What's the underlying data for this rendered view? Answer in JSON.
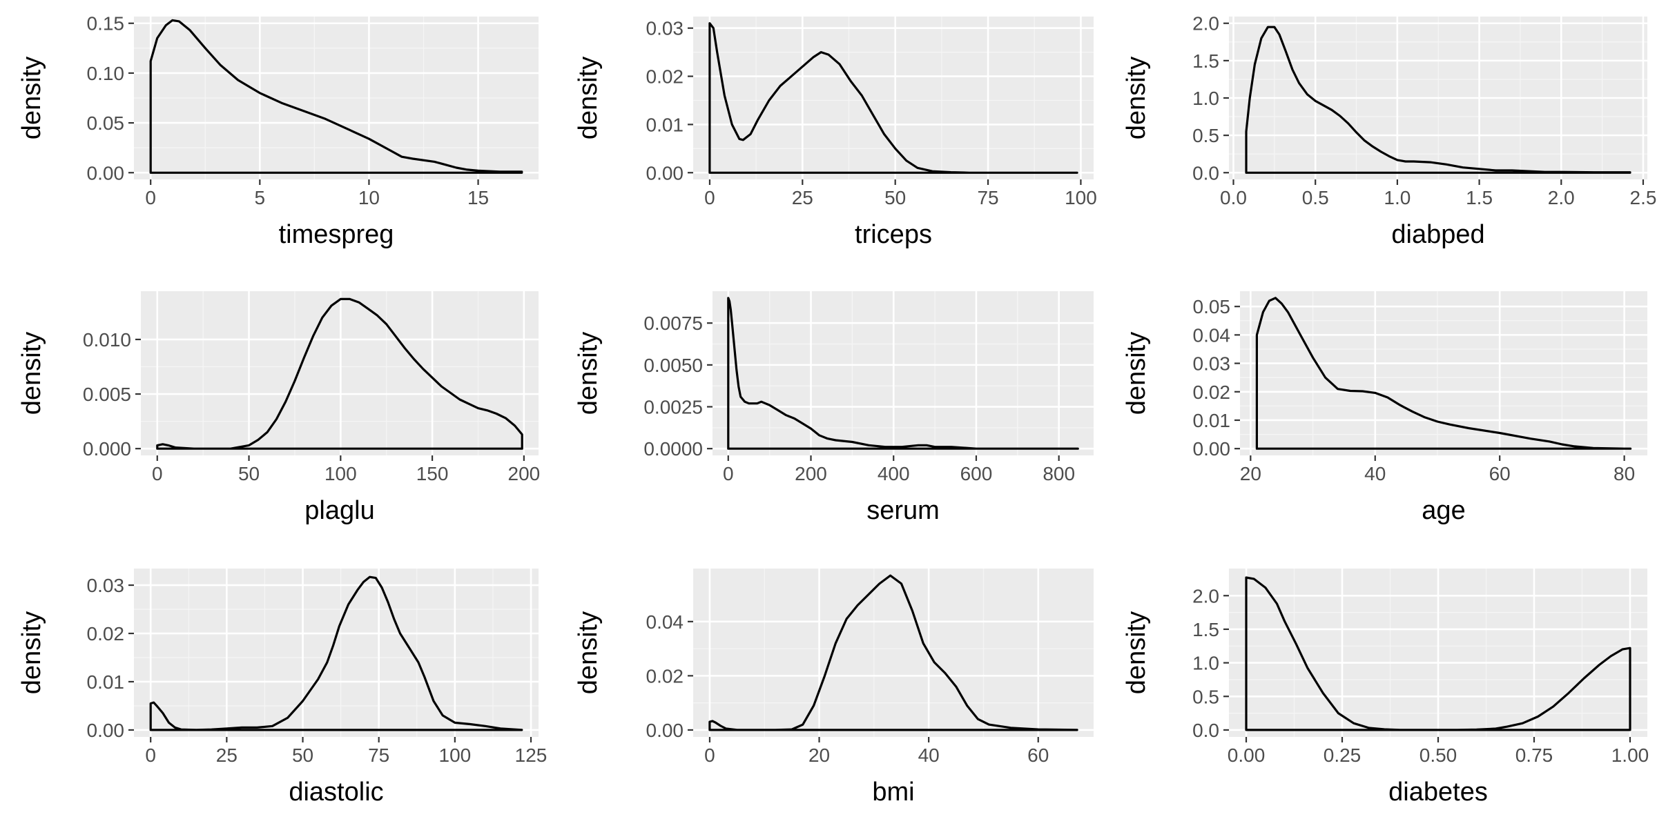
{
  "chart_data": [
    {
      "type": "area",
      "xlabel": "timespreg",
      "ylabel": "density",
      "xlim": [
        0,
        17
      ],
      "ylim": [
        0,
        0.15
      ],
      "xticks": [
        0,
        5,
        10,
        15
      ],
      "xtick_labels": [
        "0",
        "5",
        "10",
        "15"
      ],
      "yticks": [
        0,
        0.05,
        0.1,
        0.15
      ],
      "ytick_labels": [
        "0.00",
        "0.05",
        "0.10",
        "0.15"
      ],
      "x": [
        0,
        0.3,
        0.7,
        1,
        1.3,
        1.8,
        2.5,
        3.2,
        4,
        5,
        6,
        7,
        8,
        9,
        10,
        11,
        11.5,
        12,
        13,
        13.5,
        14,
        14.5,
        15,
        16,
        17
      ],
      "y": [
        0.112,
        0.135,
        0.148,
        0.153,
        0.152,
        0.143,
        0.125,
        0.108,
        0.093,
        0.08,
        0.07,
        0.062,
        0.054,
        0.044,
        0.034,
        0.022,
        0.016,
        0.014,
        0.011,
        0.008,
        0.005,
        0.003,
        0.002,
        0.001,
        0.001
      ],
      "grid": true,
      "legend": "none"
    },
    {
      "type": "area",
      "xlabel": "triceps",
      "ylabel": "density",
      "xlim": [
        0,
        99
      ],
      "ylim": [
        0,
        0.031
      ],
      "xticks": [
        0,
        25,
        50,
        75,
        100
      ],
      "xtick_labels": [
        "0",
        "25",
        "50",
        "75",
        "100"
      ],
      "yticks": [
        0,
        0.01,
        0.02,
        0.03
      ],
      "ytick_labels": [
        "0.00",
        "0.01",
        "0.02",
        "0.03"
      ],
      "x": [
        0,
        1,
        2,
        4,
        6,
        8,
        9,
        11,
        13,
        16,
        19,
        22,
        25,
        28,
        30,
        32,
        35,
        38,
        41,
        44,
        47,
        50,
        53,
        56,
        60,
        65,
        70,
        80,
        99
      ],
      "y": [
        0.031,
        0.03,
        0.025,
        0.016,
        0.01,
        0.007,
        0.0068,
        0.008,
        0.011,
        0.015,
        0.018,
        0.02,
        0.022,
        0.024,
        0.025,
        0.0245,
        0.0225,
        0.019,
        0.016,
        0.012,
        0.008,
        0.005,
        0.0025,
        0.001,
        0.0003,
        0.0001,
        0,
        0,
        0
      ],
      "grid": true,
      "legend": "none"
    },
    {
      "type": "area",
      "xlabel": "diabped",
      "ylabel": "density",
      "xlim": [
        0.078,
        2.42
      ],
      "ylim": [
        0,
        2.0
      ],
      "xticks": [
        0,
        0.5,
        1.0,
        1.5,
        2.0,
        2.5
      ],
      "xtick_labels": [
        "0.0",
        "0.5",
        "1.0",
        "1.5",
        "2.0",
        "2.5"
      ],
      "yticks": [
        0,
        0.5,
        1.0,
        1.5,
        2.0
      ],
      "ytick_labels": [
        "0.0",
        "0.5",
        "1.0",
        "1.5",
        "2.0"
      ],
      "x": [
        0.078,
        0.1,
        0.13,
        0.17,
        0.21,
        0.25,
        0.28,
        0.32,
        0.36,
        0.4,
        0.45,
        0.5,
        0.55,
        0.6,
        0.65,
        0.7,
        0.75,
        0.8,
        0.85,
        0.9,
        0.95,
        1.0,
        1.05,
        1.1,
        1.2,
        1.3,
        1.4,
        1.5,
        1.6,
        1.7,
        1.8,
        1.9,
        2.0,
        2.2,
        2.42
      ],
      "y": [
        0.55,
        1.0,
        1.45,
        1.8,
        1.95,
        1.95,
        1.85,
        1.62,
        1.38,
        1.2,
        1.05,
        0.96,
        0.9,
        0.84,
        0.76,
        0.66,
        0.54,
        0.43,
        0.35,
        0.28,
        0.22,
        0.17,
        0.15,
        0.15,
        0.14,
        0.11,
        0.07,
        0.05,
        0.03,
        0.03,
        0.02,
        0.01,
        0.01,
        0.005,
        0.005
      ],
      "grid": true,
      "legend": "none"
    },
    {
      "type": "area",
      "xlabel": "plaglu",
      "ylabel": "density",
      "xlim": [
        0,
        199
      ],
      "ylim": [
        0,
        0.0138
      ],
      "xticks": [
        0,
        50,
        100,
        150,
        200
      ],
      "xtick_labels": [
        "0",
        "50",
        "100",
        "150",
        "200"
      ],
      "yticks": [
        0,
        0.005,
        0.01
      ],
      "ytick_labels": [
        "0.000",
        "0.005",
        "0.010"
      ],
      "x": [
        0,
        3,
        6,
        10,
        20,
        30,
        40,
        50,
        55,
        60,
        65,
        70,
        75,
        80,
        85,
        90,
        95,
        100,
        105,
        110,
        115,
        120,
        125,
        130,
        135,
        140,
        145,
        150,
        155,
        160,
        165,
        170,
        175,
        180,
        185,
        190,
        195,
        199
      ],
      "y": [
        0.0003,
        0.0004,
        0.0003,
        0.0001,
        0,
        0,
        0,
        0.0003,
        0.0008,
        0.0015,
        0.0027,
        0.0043,
        0.0062,
        0.0083,
        0.0103,
        0.012,
        0.0131,
        0.0137,
        0.0137,
        0.0134,
        0.0128,
        0.0122,
        0.0114,
        0.0103,
        0.0092,
        0.0082,
        0.0073,
        0.0065,
        0.0057,
        0.0051,
        0.0045,
        0.0041,
        0.0037,
        0.0035,
        0.0032,
        0.0028,
        0.0021,
        0.0013
      ],
      "grid": true,
      "legend": "none"
    },
    {
      "type": "area",
      "xlabel": "serum",
      "ylabel": "density",
      "xlim": [
        0,
        846
      ],
      "ylim": [
        0,
        0.009
      ],
      "xticks": [
        0,
        200,
        400,
        600,
        800
      ],
      "xtick_labels": [
        "0",
        "200",
        "400",
        "600",
        "800"
      ],
      "yticks": [
        0,
        0.0025,
        0.005,
        0.0075
      ],
      "ytick_labels": [
        "0.0000",
        "0.0025",
        "0.0050",
        "0.0075"
      ],
      "x": [
        0,
        3,
        6,
        10,
        15,
        20,
        25,
        30,
        40,
        50,
        60,
        70,
        80,
        90,
        100,
        120,
        140,
        160,
        180,
        200,
        220,
        240,
        260,
        300,
        340,
        380,
        420,
        460,
        480,
        500,
        540,
        600,
        700,
        846
      ],
      "y": [
        0.009,
        0.0088,
        0.0083,
        0.0073,
        0.006,
        0.0047,
        0.0037,
        0.0031,
        0.0028,
        0.0027,
        0.0027,
        0.0027,
        0.0028,
        0.0027,
        0.0026,
        0.0023,
        0.002,
        0.0018,
        0.0015,
        0.0012,
        0.0008,
        0.0006,
        0.0005,
        0.0004,
        0.0002,
        0.0001,
        0.0001,
        0.0002,
        0.0002,
        0.0001,
        0.0001,
        0,
        0,
        0
      ],
      "grid": true,
      "legend": "none"
    },
    {
      "type": "area",
      "xlabel": "age",
      "ylabel": "density",
      "xlim": [
        21,
        81
      ],
      "ylim": [
        0,
        0.053
      ],
      "xticks": [
        20,
        40,
        60,
        80
      ],
      "xtick_labels": [
        "20",
        "40",
        "60",
        "80"
      ],
      "yticks": [
        0,
        0.01,
        0.02,
        0.03,
        0.04,
        0.05
      ],
      "ytick_labels": [
        "0.00",
        "0.01",
        "0.02",
        "0.03",
        "0.04",
        "0.05"
      ],
      "x": [
        21,
        22,
        23,
        24,
        25,
        26,
        28,
        30,
        32,
        34,
        36,
        38,
        40,
        42,
        44,
        46,
        48,
        50,
        52,
        55,
        60,
        65,
        68,
        70,
        72,
        75,
        80,
        81
      ],
      "y": [
        0.04,
        0.048,
        0.052,
        0.053,
        0.051,
        0.048,
        0.04,
        0.032,
        0.025,
        0.021,
        0.0203,
        0.0202,
        0.0196,
        0.018,
        0.0153,
        0.013,
        0.011,
        0.0095,
        0.0085,
        0.0072,
        0.0055,
        0.0035,
        0.0025,
        0.0015,
        0.0008,
        0.0002,
        0,
        0
      ],
      "grid": true,
      "legend": "none"
    },
    {
      "type": "area",
      "xlabel": "diastolic",
      "ylabel": "density",
      "xlim": [
        0,
        122
      ],
      "ylim": [
        0,
        0.032
      ],
      "xticks": [
        0,
        25,
        50,
        75,
        100,
        125
      ],
      "xtick_labels": [
        "0",
        "25",
        "50",
        "75",
        "100",
        "125"
      ],
      "yticks": [
        0,
        0.01,
        0.02,
        0.03
      ],
      "ytick_labels": [
        "0.00",
        "0.01",
        "0.02",
        "0.03"
      ],
      "x": [
        0,
        1,
        2,
        4,
        6,
        8,
        10,
        15,
        20,
        25,
        30,
        35,
        40,
        45,
        50,
        55,
        58,
        60,
        62,
        65,
        68,
        70,
        72,
        74,
        76,
        78,
        80,
        82,
        85,
        88,
        90,
        93,
        96,
        100,
        105,
        110,
        115,
        122
      ],
      "y": [
        0.0055,
        0.0057,
        0.005,
        0.0035,
        0.0015,
        0.0005,
        0.0001,
        0,
        0.0001,
        0.0003,
        0.0005,
        0.0005,
        0.0008,
        0.0025,
        0.006,
        0.0105,
        0.014,
        0.0175,
        0.0215,
        0.026,
        0.029,
        0.0307,
        0.0317,
        0.0315,
        0.0295,
        0.0265,
        0.023,
        0.02,
        0.017,
        0.014,
        0.011,
        0.006,
        0.003,
        0.0015,
        0.0012,
        0.0008,
        0.0003,
        0
      ],
      "grid": true,
      "legend": "none"
    },
    {
      "type": "area",
      "xlabel": "bmi",
      "ylabel": "density",
      "xlim": [
        0,
        67.1
      ],
      "ylim": [
        0,
        0.057
      ],
      "xticks": [
        0,
        20,
        40,
        60
      ],
      "xtick_labels": [
        "0",
        "20",
        "40",
        "60"
      ],
      "yticks": [
        0,
        0.02,
        0.04
      ],
      "ytick_labels": [
        "0.00",
        "0.02",
        "0.04"
      ],
      "x": [
        0,
        0.5,
        1,
        2,
        3,
        5,
        8,
        12,
        15,
        17,
        19,
        21,
        23,
        25,
        27,
        29,
        31,
        33,
        35,
        37,
        39,
        41,
        43,
        45,
        47,
        49,
        51,
        55,
        60,
        67.1
      ],
      "y": [
        0.003,
        0.0033,
        0.0028,
        0.0015,
        0.0005,
        0,
        0,
        0,
        0.0002,
        0.002,
        0.009,
        0.02,
        0.032,
        0.041,
        0.046,
        0.05,
        0.054,
        0.057,
        0.054,
        0.044,
        0.032,
        0.025,
        0.021,
        0.016,
        0.009,
        0.004,
        0.002,
        0.0008,
        0.0002,
        0
      ],
      "grid": true,
      "legend": "none"
    },
    {
      "type": "area",
      "xlabel": "diabetes",
      "ylabel": "density",
      "xlim": [
        0,
        1
      ],
      "ylim": [
        0,
        2.3
      ],
      "xticks": [
        0,
        0.25,
        0.5,
        0.75,
        1.0
      ],
      "xtick_labels": [
        "0.00",
        "0.25",
        "0.50",
        "0.75",
        "1.00"
      ],
      "yticks": [
        0,
        0.5,
        1.0,
        1.5,
        2.0
      ],
      "ytick_labels": [
        "0.0",
        "0.5",
        "1.0",
        "1.5",
        "2.0"
      ],
      "x": [
        0,
        0.02,
        0.05,
        0.08,
        0.1,
        0.13,
        0.16,
        0.2,
        0.24,
        0.28,
        0.32,
        0.36,
        0.4,
        0.45,
        0.5,
        0.55,
        0.6,
        0.65,
        0.68,
        0.72,
        0.76,
        0.8,
        0.84,
        0.88,
        0.92,
        0.95,
        0.98,
        1.0
      ],
      "y": [
        2.27,
        2.25,
        2.12,
        1.88,
        1.62,
        1.28,
        0.92,
        0.55,
        0.25,
        0.1,
        0.03,
        0.01,
        0,
        0,
        0,
        0,
        0.005,
        0.02,
        0.05,
        0.1,
        0.2,
        0.35,
        0.55,
        0.77,
        0.97,
        1.1,
        1.2,
        1.22
      ],
      "grid": true,
      "legend": "none"
    }
  ]
}
